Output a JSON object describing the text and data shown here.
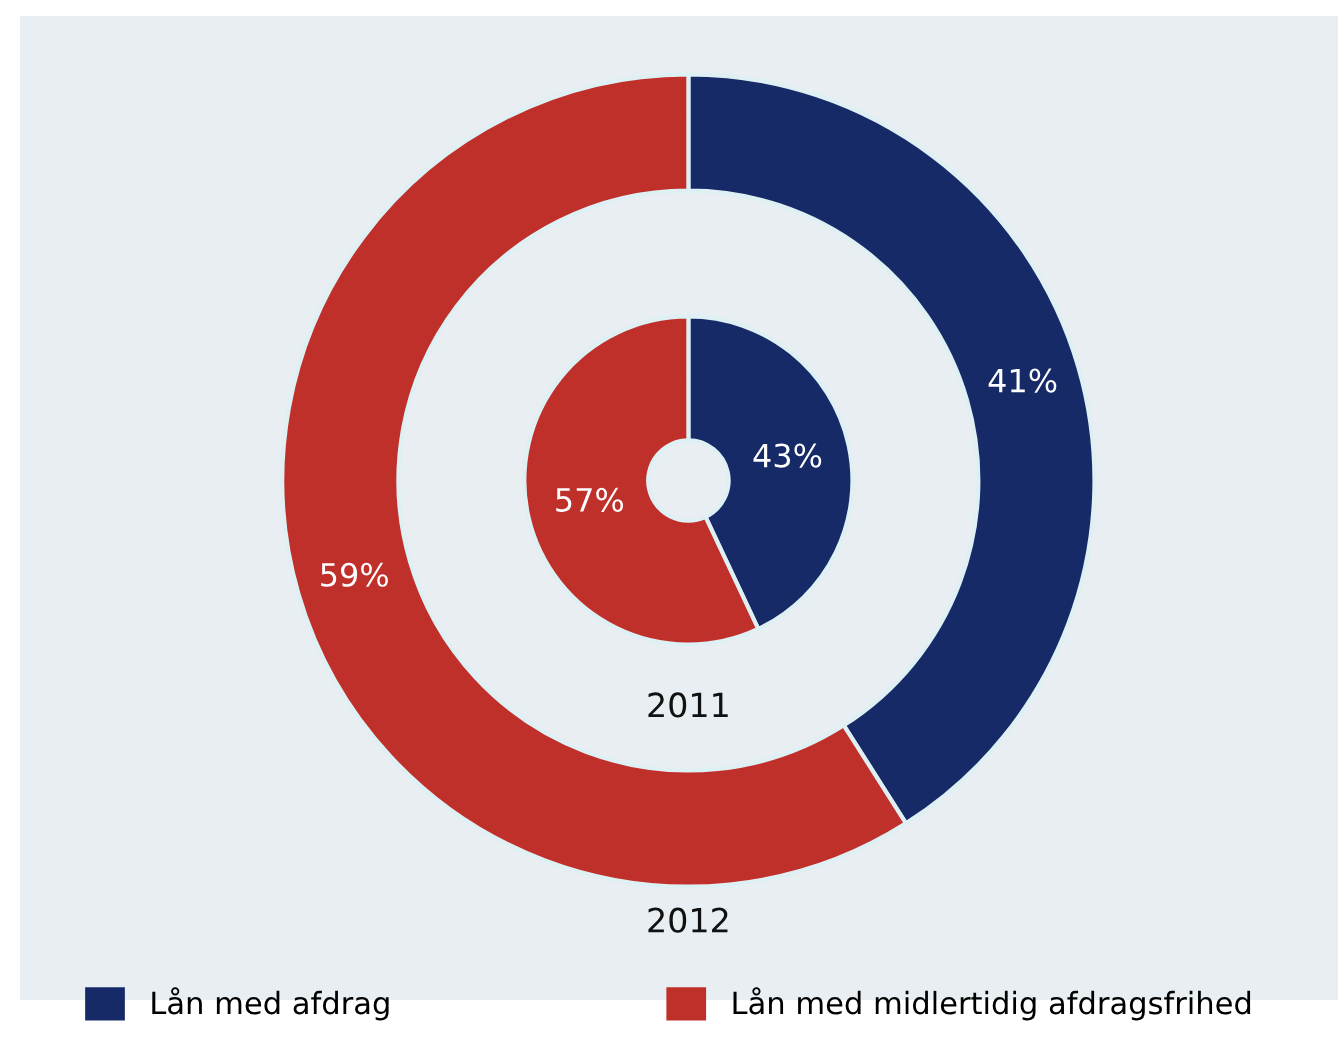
{
  "chart_data": {
    "type": "donut",
    "categories": [
      "Lån med afdrag",
      "Lån med midlertidig afdragsfrihed"
    ],
    "colors": [
      "#172a68",
      "#c0302b"
    ],
    "legend": "bottom",
    "series": [
      {
        "name": "2012",
        "values": [
          41,
          59
        ],
        "value_labels": [
          "41%",
          "59%"
        ]
      },
      {
        "name": "2011",
        "values": [
          43,
          57
        ],
        "value_labels": [
          "43%",
          "57%"
        ]
      }
    ]
  }
}
